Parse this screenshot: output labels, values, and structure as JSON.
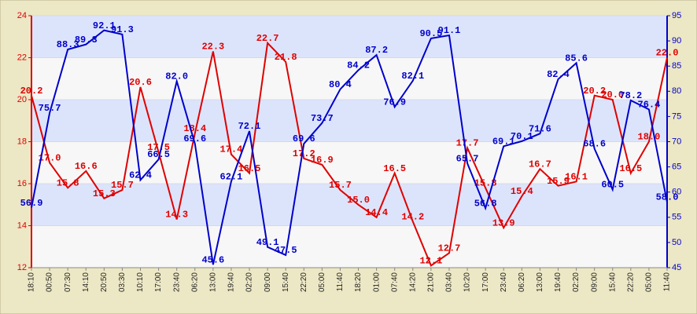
{
  "chart_data": {
    "type": "line",
    "categories": [
      "18:10",
      "00:50",
      "07:30",
      "14:10",
      "20:50",
      "03:30",
      "10:10",
      "17:00",
      "23:40",
      "06:20",
      "13:00",
      "19:40",
      "02:20",
      "09:00",
      "15:40",
      "22:20",
      "05:00",
      "11:40",
      "18:20",
      "01:00",
      "07:40",
      "14:20",
      "21:00",
      "03:40",
      "10:20",
      "17:00",
      "23:40",
      "06:20",
      "13:00",
      "19:40",
      "02:20",
      "09:00",
      "15:40",
      "22:20",
      "05:00",
      "11:40"
    ],
    "series": [
      {
        "color": "#e00000",
        "values": [
          20.2,
          17.0,
          15.8,
          16.6,
          15.3,
          15.7,
          20.6,
          17.5,
          14.3,
          18.4,
          22.3,
          17.4,
          16.5,
          22.7,
          21.8,
          17.2,
          16.9,
          15.7,
          15.0,
          14.4,
          16.5,
          14.2,
          12.1,
          12.7,
          17.7,
          15.8,
          13.9,
          15.4,
          16.7,
          15.9,
          16.1,
          20.2,
          20.0,
          16.5,
          18.0,
          22.0
        ],
        "value_labels": [
          "20.2",
          "17.0",
          "15.8",
          "16.6",
          "15.3",
          "15.7",
          "20.6",
          "17.5",
          "14.3",
          "18.4",
          "22.3",
          "17.4",
          "16.5",
          "22.7",
          "21.8",
          "17.2",
          "16.9",
          "15.7",
          "15.0",
          "14.4",
          "16.5",
          "14.2",
          "12.1",
          "12.7",
          "17.7",
          "15.8",
          "13.9",
          "15.4",
          "16.7",
          "15.9",
          "16.1",
          "20.2",
          "20.0",
          "16.5",
          "18.0",
          "22.0"
        ]
      },
      {
        "color": "#0000cc",
        "axis": "y2",
        "values": [
          56.9,
          75.7,
          88.3,
          89.3,
          92.1,
          91.3,
          62.4,
          66.5,
          82.0,
          69.6,
          45.6,
          62.1,
          72.1,
          49.1,
          47.5,
          69.6,
          73.7,
          80.4,
          84.2,
          87.2,
          76.9,
          82.1,
          90.5,
          91.1,
          65.7,
          56.8,
          69.1,
          70.1,
          71.6,
          82.4,
          85.6,
          68.6,
          60.5,
          78.2,
          76.4,
          58.0
        ],
        "value_labels": [
          "56.9",
          "75.7",
          "88.3",
          "89.3",
          "92.1",
          "91.3",
          "62.4",
          "66.5",
          "82.0",
          "69.6",
          "45.6",
          "62.1",
          "72.1",
          "49.1",
          "47.5",
          "69.6",
          "73.7",
          "80.4",
          "84.2",
          "87.2",
          "76.9",
          "82.1",
          "90.5",
          "91.1",
          "65.7",
          "56.8",
          "69.1",
          "70.1",
          "71.6",
          "82.4",
          "85.6",
          "68.6",
          "60.5",
          "78.2",
          "76.4",
          "58.0"
        ]
      }
    ],
    "ylim": [
      12,
      24
    ],
    "yticks": [
      12,
      14,
      16,
      18,
      20,
      22,
      24
    ],
    "y2lim": [
      45,
      95
    ],
    "y2ticks": [
      45,
      50,
      55,
      60,
      65,
      70,
      75,
      80,
      85,
      90,
      95
    ],
    "grid": true
  }
}
